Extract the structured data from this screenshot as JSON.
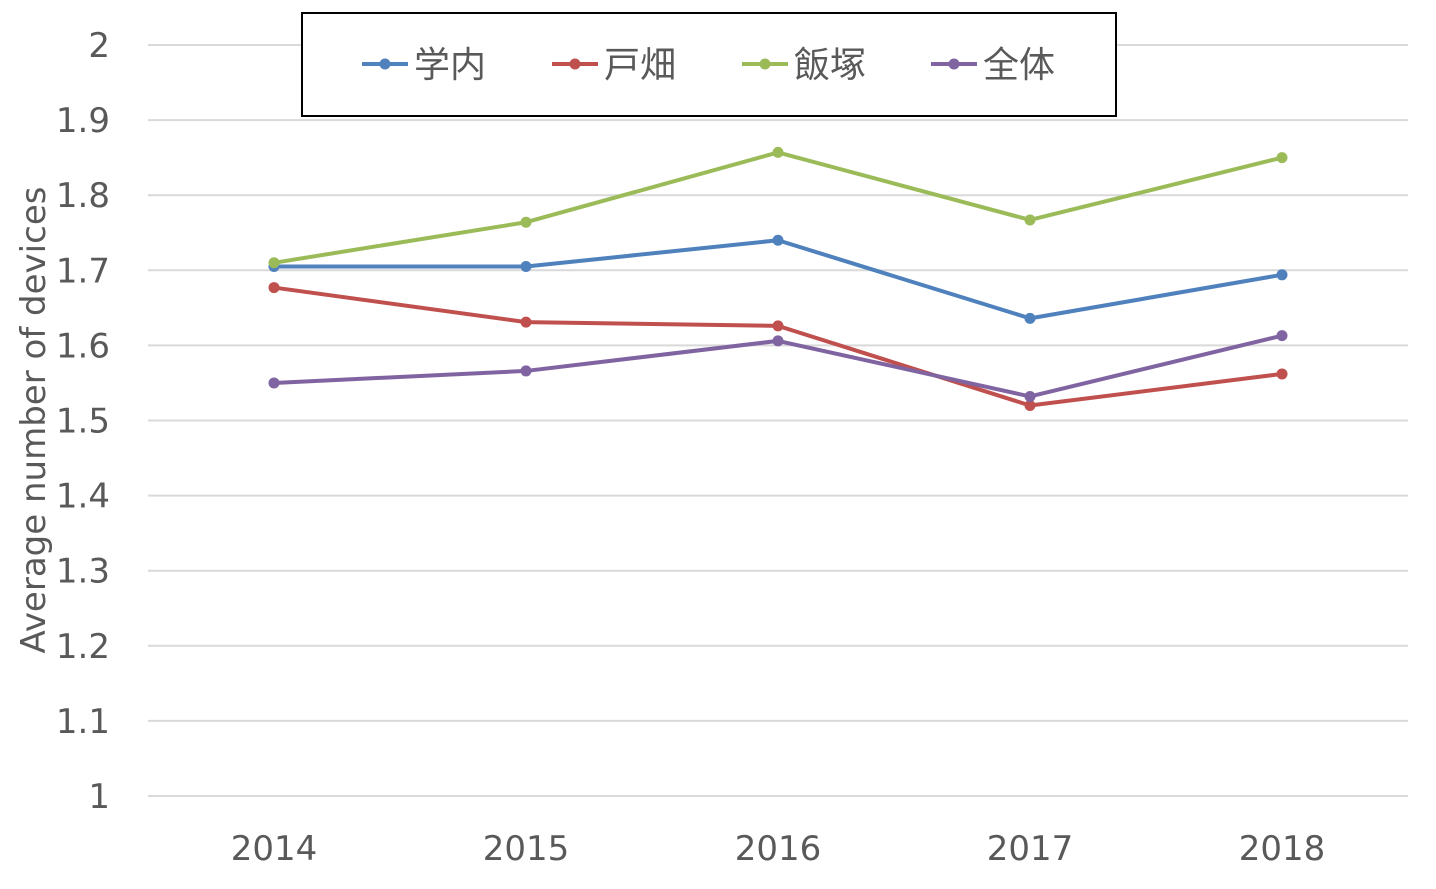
{
  "chart_data": {
    "type": "line",
    "title": "",
    "xlabel": "",
    "ylabel": "Average number of devices",
    "categories": [
      "2014",
      "2015",
      "2016",
      "2017",
      "2018"
    ],
    "ylim": [
      1,
      2
    ],
    "yticks": [
      "1",
      "1.1",
      "1.2",
      "1.3",
      "1.4",
      "1.5",
      "1.6",
      "1.7",
      "1.8",
      "1.9",
      "2"
    ],
    "grid": "horizontal",
    "legend_position": "top",
    "series": [
      {
        "name": "学内",
        "color": "#4F81BD",
        "values": [
          1.705,
          1.705,
          1.74,
          1.636,
          1.694
        ]
      },
      {
        "name": "戸畑",
        "color": "#C0504D",
        "values": [
          1.677,
          1.631,
          1.626,
          1.52,
          1.562
        ]
      },
      {
        "name": "飯塚",
        "color": "#9BBB59",
        "values": [
          1.71,
          1.764,
          1.857,
          1.767,
          1.85
        ]
      },
      {
        "name": "全体",
        "color": "#8064A2",
        "values": [
          1.55,
          1.566,
          1.606,
          1.532,
          1.613
        ]
      }
    ]
  }
}
